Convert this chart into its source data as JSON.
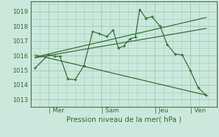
{
  "bg_color": "#cce8dc",
  "grid_color": "#99ccb8",
  "line_color": "#2d6a2d",
  "xlabel_text": "Pression niveau de la mer( hPa )",
  "x_tick_labels": [
    "| Mer",
    "| Sam",
    "| Jeu",
    "| Ven"
  ],
  "x_tick_positions": [
    1.0,
    4.0,
    7.0,
    9.0
  ],
  "ylim": [
    1012.5,
    1019.7
  ],
  "xlim": [
    0.0,
    10.5
  ],
  "yticks": [
    1013,
    1014,
    1015,
    1016,
    1017,
    1018,
    1019
  ],
  "main_x": [
    0.25,
    1.0,
    1.35,
    1.65,
    2.1,
    2.5,
    3.0,
    3.5,
    3.85,
    4.3,
    4.65,
    4.95,
    5.25,
    5.6,
    5.9,
    6.15,
    6.5,
    6.85,
    7.3,
    7.7,
    8.15,
    8.55,
    9.0,
    9.45,
    9.9
  ],
  "main_y": [
    1015.15,
    1016.05,
    1015.95,
    1015.95,
    1014.4,
    1014.35,
    1015.3,
    1017.65,
    1017.5,
    1017.3,
    1017.75,
    1016.5,
    1016.65,
    1017.15,
    1017.25,
    1019.15,
    1018.55,
    1018.65,
    1018.0,
    1016.75,
    1016.1,
    1016.05,
    1015.0,
    1013.8,
    1013.3
  ],
  "trend1_x": [
    0.25,
    9.9
  ],
  "trend1_y": [
    1015.9,
    1018.6
  ],
  "trend2_x": [
    0.25,
    9.9
  ],
  "trend2_y": [
    1016.05,
    1013.3
  ],
  "trend3_x": [
    0.25,
    9.9
  ],
  "trend3_y": [
    1015.85,
    1017.85
  ],
  "ytick_fontsize": 6.5,
  "xtick_fontsize": 6.5,
  "xlabel_fontsize": 7.5
}
